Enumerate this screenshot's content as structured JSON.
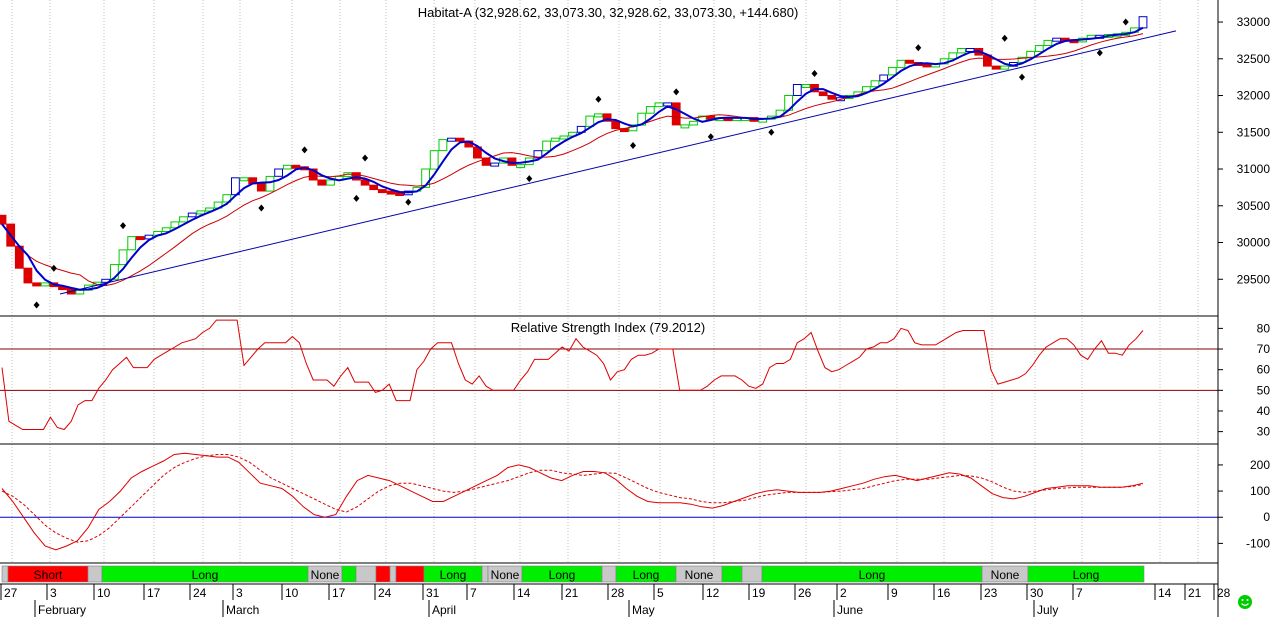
{
  "chart_data": [
    {
      "type": "candlestick",
      "title": "Habitat-A (32,928.62, 33,073.30, 32,928.62, 33,073.30, +144.680)",
      "ylim": [
        29000,
        33300
      ],
      "y_ticks": [
        29500,
        30000,
        30500,
        31000,
        31500,
        32000,
        32500,
        33000
      ],
      "y_tick_labels": [
        "29500",
        "30000",
        "30500",
        "31000",
        "31500",
        "32000",
        "32500",
        "33000"
      ],
      "grid": "vertical dotted",
      "colors": {
        "up": "#00cc00",
        "down": "#dd0000",
        "neutral": "#0000cc",
        "fast_ma": "#0000cc",
        "slow_ma": "#cc0000",
        "trendline": "#0000aa",
        "marker": "#000000"
      },
      "closes": [
        30250,
        29950,
        29650,
        29450,
        29420,
        29450,
        29400,
        29380,
        29300,
        29350,
        29420,
        29460,
        29500,
        29700,
        29900,
        30080,
        30050,
        30100,
        30150,
        30200,
        30280,
        30350,
        30400,
        30430,
        30470,
        30550,
        30650,
        30880,
        30880,
        30800,
        30700,
        30900,
        31000,
        31050,
        31030,
        31000,
        30850,
        30780,
        30850,
        30900,
        30950,
        30850,
        30780,
        30720,
        30700,
        30680,
        30650,
        30700,
        30750,
        31000,
        31250,
        31400,
        31420,
        31380,
        31300,
        31150,
        31050,
        31080,
        31150,
        31050,
        31060,
        31150,
        31250,
        31380,
        31420,
        31450,
        31500,
        31580,
        31720,
        31750,
        31650,
        31550,
        31520,
        31600,
        31760,
        31850,
        31900,
        31900,
        31600,
        31600,
        31650,
        31720,
        31700,
        31700,
        31680,
        31700,
        31700,
        31650,
        31680,
        31720,
        31800,
        32000,
        32150,
        32150,
        32050,
        32000,
        31950,
        31970,
        32000,
        32050,
        32120,
        32200,
        32280,
        32380,
        32480,
        32450,
        32430,
        32400,
        32430,
        32500,
        32580,
        32640,
        32640,
        32550,
        32400,
        32380,
        32400,
        32450,
        32520,
        32600,
        32680,
        32750,
        32780,
        32760,
        32730,
        32780,
        32820,
        32820,
        32830,
        32840,
        32860,
        32920,
        33073
      ]
    },
    {
      "type": "line",
      "title": "Relative Strength Index (79.2012)",
      "ylim": [
        24,
        86
      ],
      "y_ticks": [
        30,
        40,
        50,
        60,
        70,
        80
      ],
      "y_tick_labels": [
        "30",
        "40",
        "50",
        "60",
        "70",
        "80"
      ],
      "reference_lines": [
        70,
        50
      ],
      "colors": {
        "line": "#dd0000",
        "reference": "#880000"
      },
      "values": [
        61,
        35,
        33,
        31,
        31,
        31,
        31,
        37,
        32,
        31,
        35,
        43,
        45,
        45,
        51,
        55,
        60,
        63,
        66,
        61,
        61,
        61,
        65,
        67,
        69,
        71,
        73,
        74,
        75,
        78,
        80,
        84,
        84,
        84,
        84,
        62,
        66,
        70,
        73,
        73,
        73,
        73,
        76,
        73,
        63,
        55,
        55,
        55,
        52,
        57,
        61,
        54,
        54,
        54,
        49,
        50,
        53,
        45,
        45,
        45,
        60,
        64,
        70,
        73,
        73,
        73,
        63,
        55,
        53,
        57,
        52,
        50,
        50,
        50,
        50,
        55,
        59,
        65,
        65,
        65,
        68,
        71,
        69,
        75,
        71,
        69,
        67,
        63,
        55,
        59,
        60,
        65,
        67,
        67,
        68,
        70,
        70,
        70,
        50,
        50,
        50,
        50,
        52,
        55,
        57,
        57,
        57,
        55,
        52,
        51,
        53,
        61,
        63,
        63,
        65,
        73,
        75,
        78,
        69,
        61,
        59,
        60,
        62,
        64,
        66,
        70,
        71,
        73,
        73,
        75,
        80,
        79,
        73,
        72,
        72,
        72,
        74,
        76,
        78,
        79,
        79,
        79,
        79,
        60,
        53,
        54,
        55,
        56,
        58,
        62,
        67,
        71,
        73,
        75,
        75,
        72,
        67,
        65,
        70,
        74,
        68,
        68,
        67,
        72,
        75,
        79
      ]
    },
    {
      "type": "line",
      "title": "",
      "ylim": [
        -175,
        280
      ],
      "y_ticks": [
        -100,
        0,
        100,
        200
      ],
      "y_tick_labels": [
        "-100",
        "0",
        "100",
        "200"
      ],
      "reference_lines": [
        0
      ],
      "colors": {
        "line": "#dd0000",
        "signal": "#dd0000",
        "reference": "#0000cc"
      },
      "series": [
        {
          "values": [
            110,
            60,
            0,
            -60,
            -110,
            -125,
            -110,
            -90,
            -40,
            30,
            60,
            100,
            150,
            175,
            195,
            215,
            240,
            245,
            240,
            235,
            230,
            230,
            210,
            170,
            130,
            120,
            110,
            80,
            40,
            10,
            0,
            10,
            80,
            140,
            160,
            150,
            140,
            120,
            100,
            80,
            60,
            60,
            80,
            100,
            120,
            140,
            160,
            190,
            200,
            190,
            170,
            150,
            140,
            160,
            175,
            175,
            170,
            145,
            110,
            80,
            60,
            55,
            55,
            55,
            50,
            40,
            35,
            45,
            60,
            75,
            90,
            100,
            105,
            100,
            95,
            95,
            95,
            100,
            110,
            120,
            130,
            145,
            155,
            160,
            150,
            140,
            150,
            160,
            170,
            165,
            150,
            120,
            90,
            75,
            70,
            80,
            95,
            110,
            115,
            120,
            120,
            120,
            115,
            115,
            115,
            120,
            130
          ]
        },
        {
          "values": [
            100,
            80,
            50,
            10,
            -30,
            -60,
            -80,
            -95,
            -90,
            -70,
            -40,
            0,
            40,
            80,
            120,
            160,
            190,
            210,
            225,
            235,
            240,
            240,
            230,
            210,
            180,
            150,
            130,
            110,
            90,
            70,
            50,
            30,
            20,
            40,
            70,
            100,
            120,
            130,
            130,
            120,
            110,
            100,
            95,
            100,
            110,
            120,
            130,
            140,
            155,
            170,
            180,
            180,
            170,
            165,
            160,
            165,
            170,
            168,
            150,
            130,
            110,
            95,
            85,
            75,
            70,
            60,
            55,
            55,
            60,
            65,
            75,
            85,
            90,
            95,
            95,
            95,
            95,
            98,
            100,
            105,
            110,
            120,
            130,
            140,
            145,
            145,
            145,
            150,
            155,
            160,
            158,
            150,
            135,
            115,
            100,
            95,
            100,
            105,
            110,
            112,
            115,
            115,
            115,
            115,
            115,
            118,
            125
          ]
        }
      ]
    }
  ],
  "status_bar": {
    "segments": [
      {
        "label": "",
        "color": "#c8c8c8",
        "w": 6
      },
      {
        "label": "Short",
        "color": "#ff0000",
        "w": 80
      },
      {
        "label": "",
        "color": "#c8c8c8",
        "w": 14
      },
      {
        "label": "Long",
        "color": "#00ee00",
        "w": 206
      },
      {
        "label": "None",
        "color": "#c8c8c8",
        "w": 34
      },
      {
        "label": "",
        "color": "#00ee00",
        "w": 14
      },
      {
        "label": "",
        "color": "#c8c8c8",
        "w": 20
      },
      {
        "label": "",
        "color": "#ff0000",
        "w": 14
      },
      {
        "label": "",
        "color": "#c8c8c8",
        "w": 6
      },
      {
        "label": "",
        "color": "#ff0000",
        "w": 28
      },
      {
        "label": "Long",
        "color": "#00ee00",
        "w": 58
      },
      {
        "label": "",
        "color": "#c8c8c8",
        "w": 6
      },
      {
        "label": "None",
        "color": "#c8c8c8",
        "w": 34
      },
      {
        "label": "Long",
        "color": "#00ee00",
        "w": 80
      },
      {
        "label": "",
        "color": "#c8c8c8",
        "w": 14
      },
      {
        "label": "Long",
        "color": "#00ee00",
        "w": 60
      },
      {
        "label": "None",
        "color": "#c8c8c8",
        "w": 46
      },
      {
        "label": "",
        "color": "#00ee00",
        "w": 20
      },
      {
        "label": "",
        "color": "#c8c8c8",
        "w": 20
      },
      {
        "label": "Long",
        "color": "#00ee00",
        "w": 220
      },
      {
        "label": "None",
        "color": "#c8c8c8",
        "w": 46
      },
      {
        "label": "Long",
        "color": "#00ee00",
        "w": 116
      }
    ]
  },
  "x_axis": {
    "day_labels": [
      "27",
      "3",
      "10",
      "17",
      "24",
      "3",
      "10",
      "17",
      "24",
      "31",
      "7",
      "14",
      "21",
      "28",
      "5",
      "12",
      "19",
      "26",
      "2",
      "9",
      "16",
      "23",
      "30",
      "7",
      "14",
      "21",
      "28"
    ],
    "month_labels": [
      "February",
      "March",
      "April",
      "May",
      "June",
      "July"
    ]
  },
  "icons": {
    "smiley": "smiley-icon"
  }
}
